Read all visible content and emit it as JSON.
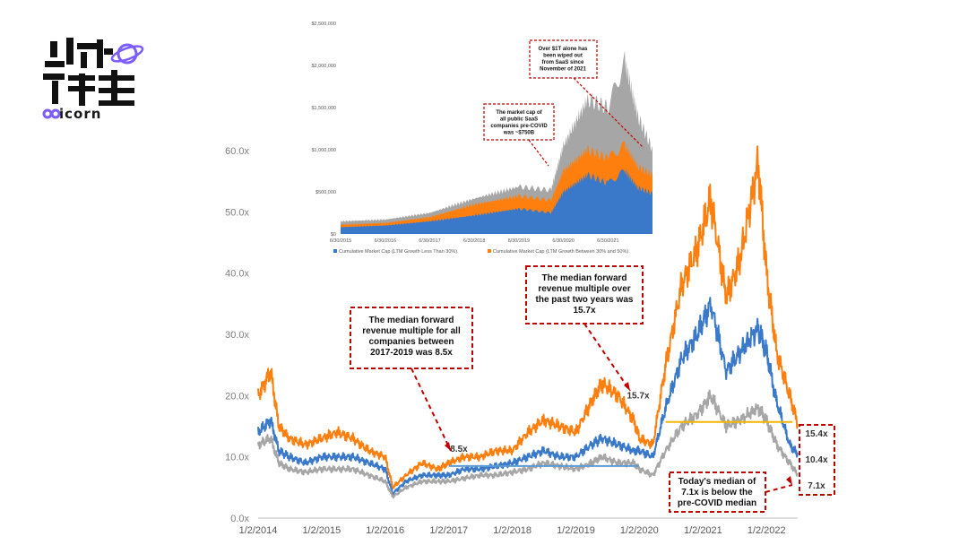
{
  "logo": {
    "brand_text": "icorn",
    "accent": "#7b5cff"
  },
  "chart_data": [
    {
      "id": "main",
      "type": "line",
      "title": "",
      "xlabel": "",
      "ylabel": "",
      "x_tick_labels": [
        "1/2/2014",
        "1/2/2015",
        "1/2/2016",
        "1/2/2017",
        "1/2/2018",
        "1/2/2019",
        "1/2/2020",
        "1/2/2021",
        "1/2/2022"
      ],
      "y_tick_labels": [
        "0.0x",
        "10.0x",
        "20.0x",
        "30.0x",
        "40.0x",
        "50.0x",
        "60.0x"
      ],
      "ylim": [
        0,
        60
      ],
      "xlim": [
        "2014-01-02",
        "2022-06-30"
      ],
      "grid": false,
      "series": [
        {
          "color": "#ff7f0e",
          "points": [
            [
              "2014-01-02",
              20
            ],
            [
              "2014-03-15",
              24
            ],
            [
              "2014-05-01",
              15
            ],
            [
              "2014-07-01",
              13
            ],
            [
              "2014-10-01",
              12
            ],
            [
              "2015-01-02",
              13
            ],
            [
              "2015-04-01",
              14
            ],
            [
              "2015-07-01",
              13
            ],
            [
              "2015-10-01",
              11
            ],
            [
              "2016-01-02",
              10
            ],
            [
              "2016-02-15",
              5
            ],
            [
              "2016-05-01",
              7
            ],
            [
              "2016-08-01",
              9
            ],
            [
              "2016-11-01",
              8
            ],
            [
              "2017-01-02",
              9
            ],
            [
              "2017-04-01",
              10
            ],
            [
              "2017-07-01",
              10
            ],
            [
              "2017-10-01",
              11
            ],
            [
              "2018-01-02",
              11
            ],
            [
              "2018-04-01",
              14
            ],
            [
              "2018-07-01",
              16
            ],
            [
              "2018-10-01",
              15
            ],
            [
              "2019-01-02",
              14
            ],
            [
              "2019-04-01",
              19
            ],
            [
              "2019-06-01",
              22
            ],
            [
              "2019-09-01",
              20
            ],
            [
              "2019-12-01",
              16
            ],
            [
              "2020-01-02",
              13
            ],
            [
              "2020-03-20",
              12
            ],
            [
              "2020-06-01",
              25
            ],
            [
              "2020-09-01",
              38
            ],
            [
              "2020-12-01",
              44
            ],
            [
              "2021-02-15",
              52
            ],
            [
              "2021-05-15",
              36
            ],
            [
              "2021-08-01",
              42
            ],
            [
              "2021-11-15",
              58
            ],
            [
              "2022-01-02",
              40
            ],
            [
              "2022-03-01",
              27
            ],
            [
              "2022-05-15",
              20
            ],
            [
              "2022-06-30",
              15.4
            ]
          ]
        },
        {
          "color": "#3a78c9",
          "points": [
            [
              "2014-01-02",
              14
            ],
            [
              "2014-03-15",
              16
            ],
            [
              "2014-05-01",
              11
            ],
            [
              "2014-07-01",
              10
            ],
            [
              "2014-10-01",
              9
            ],
            [
              "2015-01-02",
              10
            ],
            [
              "2015-04-01",
              10
            ],
            [
              "2015-07-01",
              10
            ],
            [
              "2015-10-01",
              9
            ],
            [
              "2016-01-02",
              8
            ],
            [
              "2016-02-15",
              4
            ],
            [
              "2016-05-01",
              6
            ],
            [
              "2016-08-01",
              7
            ],
            [
              "2016-11-01",
              7
            ],
            [
              "2017-01-02",
              7
            ],
            [
              "2017-04-01",
              8
            ],
            [
              "2017-07-01",
              8
            ],
            [
              "2017-10-01",
              8.5
            ],
            [
              "2018-01-02",
              9
            ],
            [
              "2018-04-01",
              10
            ],
            [
              "2018-07-01",
              11
            ],
            [
              "2018-10-01",
              10
            ],
            [
              "2019-01-02",
              10
            ],
            [
              "2019-04-01",
              12
            ],
            [
              "2019-06-01",
              13
            ],
            [
              "2019-09-01",
              12
            ],
            [
              "2019-12-01",
              11
            ],
            [
              "2020-01-02",
              11
            ],
            [
              "2020-03-20",
              10
            ],
            [
              "2020-06-01",
              18
            ],
            [
              "2020-09-01",
              26
            ],
            [
              "2020-12-01",
              30
            ],
            [
              "2021-02-15",
              35
            ],
            [
              "2021-05-15",
              24
            ],
            [
              "2021-08-01",
              27
            ],
            [
              "2021-11-15",
              31
            ],
            [
              "2022-01-02",
              27
            ],
            [
              "2022-03-01",
              19
            ],
            [
              "2022-05-15",
              12
            ],
            [
              "2022-06-30",
              10.4
            ]
          ]
        },
        {
          "color": "#a6a6a6",
          "points": [
            [
              "2014-01-02",
              12
            ],
            [
              "2014-03-15",
              13
            ],
            [
              "2014-05-01",
              9
            ],
            [
              "2014-07-01",
              8
            ],
            [
              "2014-10-01",
              7.5
            ],
            [
              "2015-01-02",
              8
            ],
            [
              "2015-04-01",
              8
            ],
            [
              "2015-07-01",
              8
            ],
            [
              "2015-10-01",
              7
            ],
            [
              "2016-01-02",
              6
            ],
            [
              "2016-02-15",
              3.5
            ],
            [
              "2016-05-01",
              5
            ],
            [
              "2016-08-01",
              6
            ],
            [
              "2016-11-01",
              6
            ],
            [
              "2017-01-02",
              6
            ],
            [
              "2017-04-01",
              6.5
            ],
            [
              "2017-07-01",
              7
            ],
            [
              "2017-10-01",
              7
            ],
            [
              "2018-01-02",
              7.5
            ],
            [
              "2018-04-01",
              8
            ],
            [
              "2018-07-01",
              9
            ],
            [
              "2018-10-01",
              8.5
            ],
            [
              "2019-01-02",
              8
            ],
            [
              "2019-04-01",
              9
            ],
            [
              "2019-06-01",
              10
            ],
            [
              "2019-09-01",
              9
            ],
            [
              "2019-12-01",
              9
            ],
            [
              "2020-01-02",
              8
            ],
            [
              "2020-03-20",
              7
            ],
            [
              "2020-06-01",
              11
            ],
            [
              "2020-09-01",
              15
            ],
            [
              "2020-12-01",
              17
            ],
            [
              "2021-02-15",
              20
            ],
            [
              "2021-05-15",
              15
            ],
            [
              "2021-08-01",
              16
            ],
            [
              "2021-11-15",
              18
            ],
            [
              "2022-01-02",
              16
            ],
            [
              "2022-03-01",
              12
            ],
            [
              "2022-05-15",
              9
            ],
            [
              "2022-06-30",
              7.1
            ]
          ]
        }
      ],
      "medians": [
        {
          "color": "#5b9bd5",
          "value": 8.5,
          "from": "2017-01-02",
          "to": "2019-12-31",
          "label": "8.5x"
        },
        {
          "color": "#f2b600",
          "value": 15.7,
          "from": "2020-06-01",
          "to": "2022-06-01",
          "label": "15.7x"
        }
      ],
      "end_labels": [
        "15.4x",
        "10.4x",
        "7.1x"
      ],
      "callouts": [
        "The median forward revenue multiple for all companies between 2017-2019 was 8.5x",
        "The median forward revenue multiple over the past two years was 15.7x",
        "Today's median of 7.1x is below the pre-COVID median"
      ],
      "callout_color": "#c00000"
    },
    {
      "id": "inset",
      "type": "area",
      "title": "",
      "y_tick_labels": [
        "$0",
        "$500,000",
        "$1,000,000",
        "$1,500,000",
        "$2,000,000",
        "$2,500,000"
      ],
      "ylim": [
        0,
        2500000
      ],
      "x_tick_labels": [
        "6/30/2015",
        "6/30/2016",
        "6/30/2017",
        "6/30/2018",
        "6/30/2019",
        "6/30/2020",
        "6/30/2021"
      ],
      "xlim": [
        "2015-06-30",
        "2022-06-30"
      ],
      "grid": false,
      "legend_position": "bottom",
      "series": [
        {
          "name": "Cumulative Market Cap (LTM Growth Less Than 30%)",
          "color": "#3a78c9",
          "points": [
            [
              "2015-06-30",
              80000
            ],
            [
              "2016-06-30",
              100000
            ],
            [
              "2017-06-30",
              150000
            ],
            [
              "2018-06-30",
              220000
            ],
            [
              "2019-06-30",
              300000
            ],
            [
              "2020-03-20",
              250000
            ],
            [
              "2020-06-30",
              500000
            ],
            [
              "2021-01-15",
              700000
            ],
            [
              "2021-06-30",
              600000
            ],
            [
              "2021-11-15",
              750000
            ],
            [
              "2022-03-01",
              550000
            ],
            [
              "2022-06-30",
              480000
            ]
          ]
        },
        {
          "name": "Cumulative Market Cap (LTM Growth Between 30% and 50%)",
          "color": "#ff7f0e",
          "points": [
            [
              "2015-06-30",
              110000
            ],
            [
              "2016-06-30",
              130000
            ],
            [
              "2017-06-30",
              200000
            ],
            [
              "2018-06-30",
              350000
            ],
            [
              "2019-06-30",
              450000
            ],
            [
              "2020-03-20",
              400000
            ],
            [
              "2020-06-30",
              750000
            ],
            [
              "2021-01-15",
              1000000
            ],
            [
              "2021-06-30",
              900000
            ],
            [
              "2021-11-15",
              1050000
            ],
            [
              "2022-03-01",
              800000
            ],
            [
              "2022-06-30",
              700000
            ]
          ]
        },
        {
          "color": "#a6a6a6",
          "points": [
            [
              "2015-06-30",
              150000
            ],
            [
              "2016-06-30",
              170000
            ],
            [
              "2017-06-30",
              250000
            ],
            [
              "2018-06-30",
              420000
            ],
            [
              "2019-06-30",
              560000
            ],
            [
              "2020-03-20",
              520000
            ],
            [
              "2020-06-30",
              1050000
            ],
            [
              "2021-01-15",
              1600000
            ],
            [
              "2021-06-30",
              1500000
            ],
            [
              "2021-11-15",
              2050000
            ],
            [
              "2022-03-01",
              1400000
            ],
            [
              "2022-06-30",
              1000000
            ]
          ]
        }
      ],
      "callouts": [
        "Over $1T alone has been wiped out from SaaS since November of 2021",
        "The market cap of all public SaaS companies pre-COVID was ~$750B"
      ]
    }
  ]
}
